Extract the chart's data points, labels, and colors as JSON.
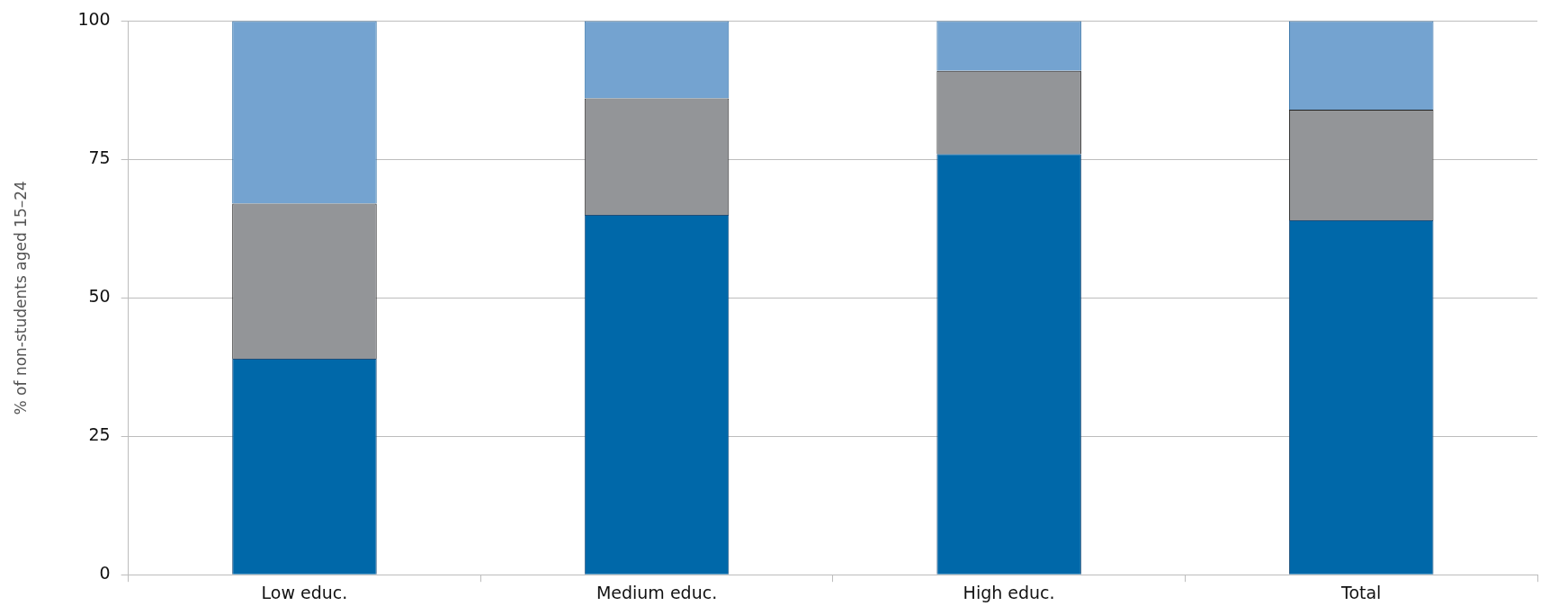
{
  "chart_data": {
    "type": "bar",
    "ylabel": "% of non-students aged 15–24",
    "categories": [
      "Low educ.",
      "Medium educ.",
      "High educ.",
      "Total"
    ],
    "stacked": true,
    "ylim": [
      0,
      100
    ],
    "yticks": [
      0,
      25,
      50,
      75,
      100
    ],
    "grid": "y",
    "series": [
      {
        "color": "#0068a9",
        "values": [
          39,
          65,
          76,
          64
        ]
      },
      {
        "color": "#939598",
        "values": [
          28,
          21,
          15,
          20
        ]
      },
      {
        "color": "#74a3d0",
        "values": [
          33,
          14,
          9,
          16
        ]
      }
    ]
  }
}
